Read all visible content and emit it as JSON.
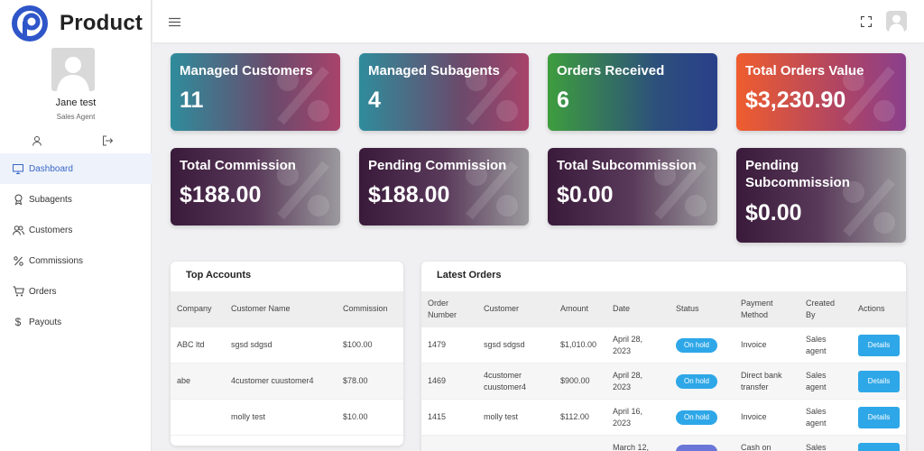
{
  "brand": {
    "name": "Product",
    "color": "#2f56c9"
  },
  "user": {
    "name": "Jane test",
    "role": "Sales Agent"
  },
  "nav": [
    {
      "label": "Dashboard",
      "icon": "monitor-icon",
      "active": true
    },
    {
      "label": "Subagents",
      "icon": "award-icon"
    },
    {
      "label": "Customers",
      "icon": "users-icon"
    },
    {
      "label": "Commissions",
      "icon": "percent-icon"
    },
    {
      "label": "Orders",
      "icon": "cart-icon"
    },
    {
      "label": "Payouts",
      "icon": "dollar-icon"
    }
  ],
  "stats": [
    {
      "title": "Managed Customers",
      "value": "11"
    },
    {
      "title": "Managed Subagents",
      "value": "4"
    },
    {
      "title": "Orders Received",
      "value": "6"
    },
    {
      "title": "Total Orders Value",
      "value": "$3,230.90"
    },
    {
      "title": "Total Commission",
      "value": "$188.00"
    },
    {
      "title": "Pending Commission",
      "value": "$188.00"
    },
    {
      "title": "Total Subcommission",
      "value": "$0.00"
    },
    {
      "title": "Pending Subcommission",
      "value": "$0.00"
    }
  ],
  "top_accounts": {
    "title": "Top Accounts",
    "columns": [
      "Company",
      "Customer Name",
      "Commission"
    ],
    "rows": [
      [
        "ABC ltd",
        "sgsd sdgsd",
        "$100.00"
      ],
      [
        "abe",
        "4customer cuustomer4",
        "$78.00"
      ],
      [
        "",
        "molly test",
        "$10.00"
      ]
    ]
  },
  "latest_orders": {
    "title": "Latest Orders",
    "columns": [
      "Order Number",
      "Customer",
      "Amount",
      "Date",
      "Status",
      "Payment Method",
      "Created By",
      "Actions"
    ],
    "rows": [
      {
        "number": "1479",
        "customer": "sgsd sdgsd",
        "amount": "$1,010.00",
        "date": "April 28, 2023",
        "status": "On hold",
        "payment": "Invoice",
        "created_by": "Sales agent",
        "action": "Details"
      },
      {
        "number": "1469",
        "customer": "4customer cuustomer4",
        "amount": "$900.00",
        "date": "April 28, 2023",
        "status": "On hold",
        "payment": "Direct bank transfer",
        "created_by": "Sales agent",
        "action": "Details"
      },
      {
        "number": "1415",
        "customer": "molly test",
        "amount": "$112.00",
        "date": "April 16, 2023",
        "status": "On hold",
        "payment": "Invoice",
        "created_by": "Sales agent",
        "action": "Details"
      },
      {
        "number": "",
        "customer": "",
        "amount": "",
        "date": "March 12,",
        "status": "",
        "payment": "Cash on",
        "created_by": "Sales",
        "action": ""
      }
    ]
  },
  "colors": {
    "accent": "#2ea7e8",
    "active_nav": "#3867c8"
  }
}
